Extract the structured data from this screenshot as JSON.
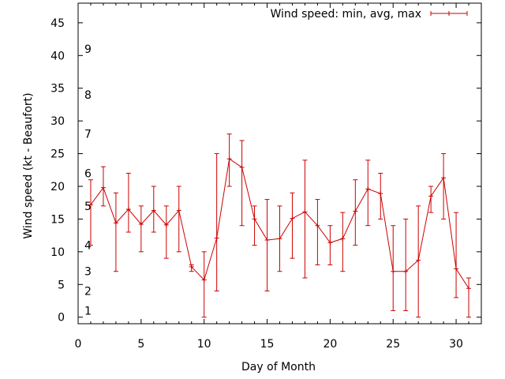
{
  "chart_data": {
    "type": "line",
    "xlabel": "Day of Month",
    "ylabel": "Wind speed (kt - Beaufort)",
    "xlim": [
      0,
      32
    ],
    "ylim": [
      -1,
      48
    ],
    "x_ticks": [
      0,
      5,
      10,
      15,
      20,
      25,
      30
    ],
    "y_ticks": [
      0,
      5,
      10,
      15,
      20,
      25,
      30,
      35,
      40,
      45
    ],
    "grid": false,
    "legend_position": "top-right",
    "color": "#cc0000",
    "series": [
      {
        "name": "Wind speed: min, avg, max",
        "x": [
          1,
          2,
          3,
          4,
          5,
          6,
          7,
          8,
          9,
          10,
          11,
          12,
          13,
          14,
          15,
          16,
          17,
          18,
          19,
          20,
          21,
          22,
          23,
          24,
          25,
          26,
          27,
          28,
          29,
          30,
          31
        ],
        "avg": [
          17.2,
          19.8,
          14.4,
          16.5,
          14.2,
          16.3,
          14.1,
          16.3,
          7.7,
          5.7,
          12.1,
          24.2,
          22.9,
          15.0,
          11.8,
          12.0,
          15.1,
          16.1,
          14.0,
          11.4,
          12.0,
          16.2,
          19.6,
          18.9,
          7.0,
          7.0,
          8.7,
          18.5,
          21.3,
          7.4,
          4.4
        ],
        "min": [
          11,
          17,
          7,
          13,
          10,
          13,
          9,
          10,
          7,
          0,
          4,
          20,
          14,
          11,
          4,
          7,
          9,
          6,
          8,
          8,
          7,
          11,
          14,
          15,
          1,
          1,
          0,
          16,
          15,
          3,
          0
        ],
        "max": [
          21,
          23,
          19,
          22,
          17,
          20,
          17,
          20,
          8,
          10,
          25,
          28,
          27,
          17,
          18,
          17,
          19,
          24,
          18,
          14,
          16,
          21,
          24,
          22,
          14,
          15,
          17,
          20,
          25,
          16,
          6
        ]
      }
    ],
    "beaufort_labels": [
      {
        "label": "1",
        "value": 1
      },
      {
        "label": "2",
        "value": 4
      },
      {
        "label": "3",
        "value": 7
      },
      {
        "label": "4",
        "value": 11
      },
      {
        "label": "5",
        "value": 17
      },
      {
        "label": "6",
        "value": 22
      },
      {
        "label": "7",
        "value": 28
      },
      {
        "label": "8",
        "value": 34
      },
      {
        "label": "9",
        "value": 41
      }
    ]
  }
}
